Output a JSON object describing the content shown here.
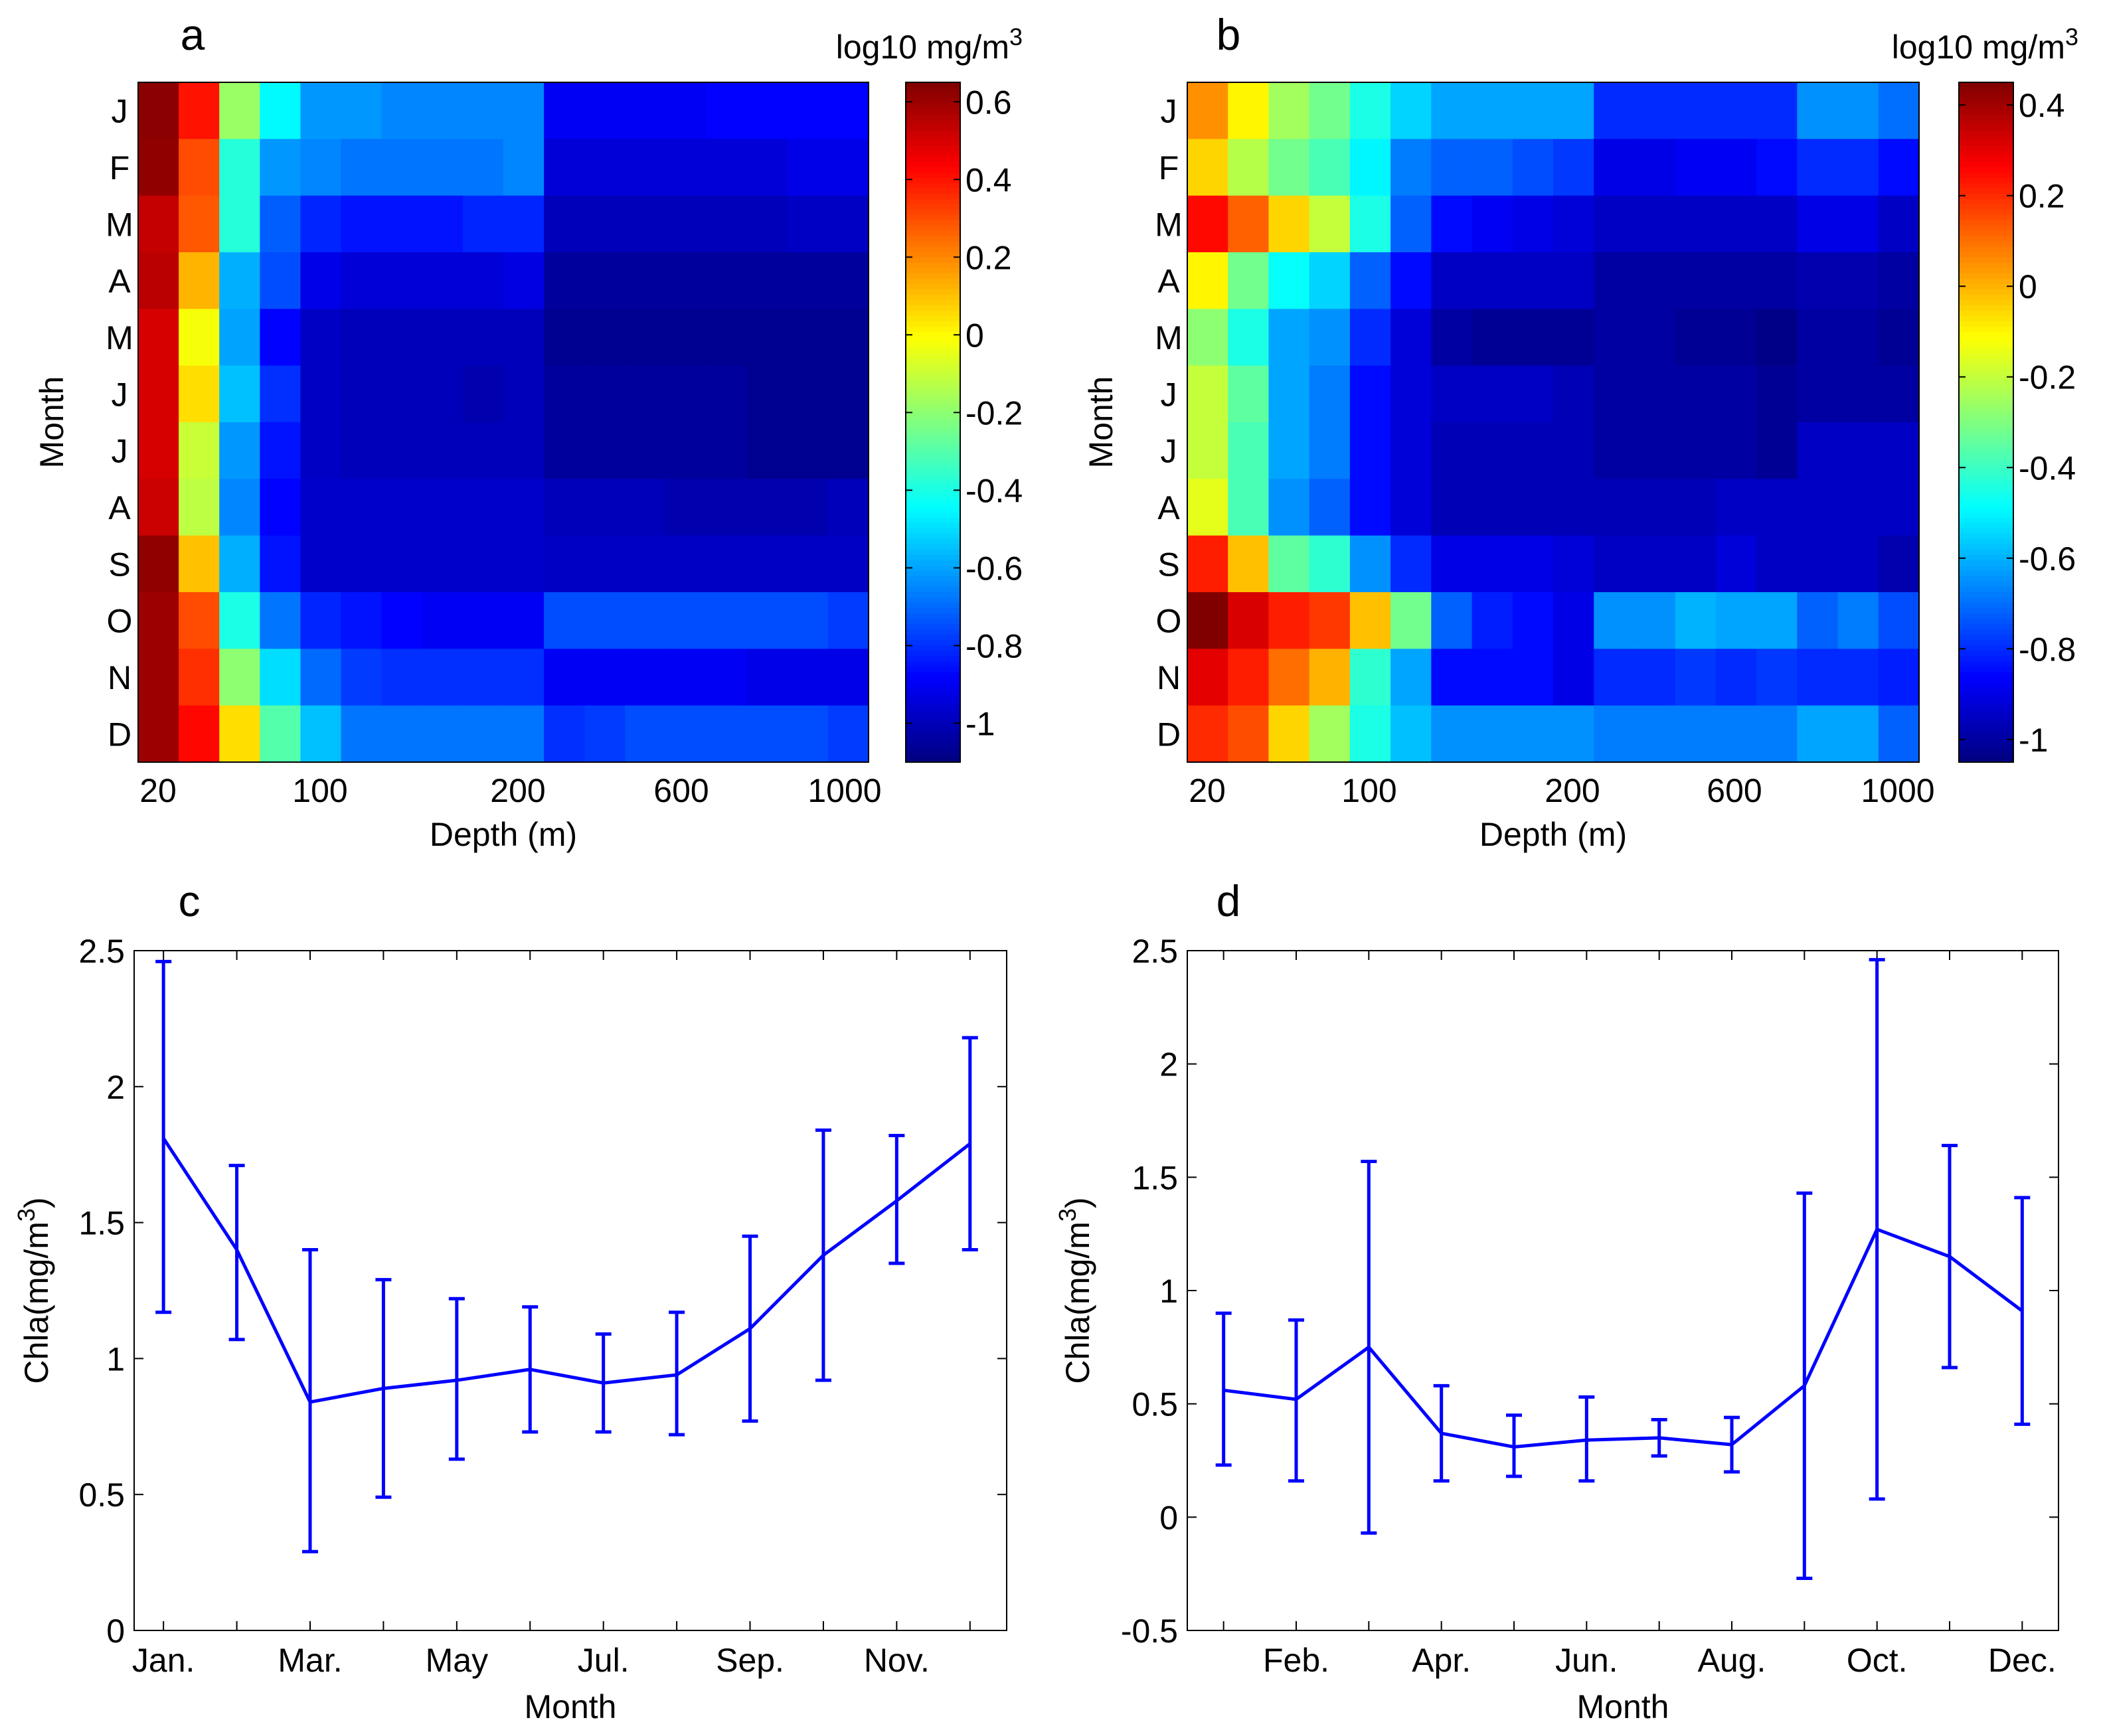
{
  "chart_data": [
    {
      "panel": "a",
      "type": "heatmap",
      "colorbar_label_prefix": "log10 mg/m",
      "colorbar_label_sup": "3",
      "xlabel": "Depth (m)",
      "ylabel": "Month",
      "y_categories": [
        "J",
        "F",
        "M",
        "A",
        "M",
        "J",
        "J",
        "A",
        "S",
        "O",
        "N",
        "D"
      ],
      "x_ticks": [
        "20",
        "100",
        "200",
        "600",
        "1000"
      ],
      "colorbar_range": [
        -1.1,
        0.65
      ],
      "colorbar_ticks": [
        "0.6",
        "0.4",
        "0.2",
        "0",
        "-0.2",
        "-0.4",
        "-0.6",
        "-0.8",
        "-1"
      ],
      "colorbar_tick_values": [
        0.6,
        0.4,
        0.2,
        0,
        -0.2,
        -0.4,
        -0.6,
        -0.8,
        -1
      ],
      "values": [
        [
          0.63,
          0.4,
          -0.18,
          -0.45,
          -0.62,
          -0.62,
          -0.65,
          -0.65,
          -0.65,
          -0.65,
          -0.9,
          -0.9,
          -0.9,
          -0.9,
          -0.88,
          -0.88,
          -0.88,
          -0.88
        ],
        [
          0.62,
          0.3,
          -0.38,
          -0.62,
          -0.65,
          -0.68,
          -0.68,
          -0.68,
          -0.68,
          -0.65,
          -0.95,
          -0.95,
          -0.95,
          -0.95,
          -0.95,
          -0.95,
          -0.92,
          -0.92
        ],
        [
          0.53,
          0.28,
          -0.38,
          -0.72,
          -0.82,
          -0.85,
          -0.85,
          -0.85,
          -0.82,
          -0.82,
          -1.0,
          -1.0,
          -1.0,
          -1.0,
          -1.0,
          -1.0,
          -0.98,
          -0.98
        ],
        [
          0.55,
          0.12,
          -0.58,
          -0.75,
          -0.92,
          -0.95,
          -0.95,
          -0.95,
          -0.95,
          -0.93,
          -1.05,
          -1.05,
          -1.05,
          -1.05,
          -1.05,
          -1.05,
          -1.05,
          -1.05
        ],
        [
          0.5,
          -0.02,
          -0.6,
          -0.88,
          -0.98,
          -1.0,
          -1.0,
          -1.0,
          -1.0,
          -1.0,
          -1.07,
          -1.07,
          -1.07,
          -1.07,
          -1.07,
          -1.07,
          -1.07,
          -1.07
        ],
        [
          0.5,
          0.05,
          -0.55,
          -0.8,
          -0.98,
          -1.0,
          -1.0,
          -1.0,
          -1.02,
          -1.0,
          -1.05,
          -1.05,
          -1.05,
          -1.05,
          -1.05,
          -1.07,
          -1.07,
          -1.07
        ],
        [
          0.5,
          -0.1,
          -0.62,
          -0.85,
          -0.98,
          -1.0,
          -1.0,
          -1.0,
          -1.0,
          -1.0,
          -1.05,
          -1.05,
          -1.05,
          -1.05,
          -1.05,
          -1.07,
          -1.07,
          -1.07
        ],
        [
          0.52,
          -0.12,
          -0.65,
          -0.88,
          -0.97,
          -0.97,
          -0.97,
          -0.97,
          -0.97,
          -0.97,
          -1.0,
          -1.0,
          -1.0,
          -1.02,
          -1.02,
          -1.02,
          -1.02,
          -1.0
        ],
        [
          0.62,
          0.1,
          -0.58,
          -0.85,
          -0.97,
          -0.97,
          -0.97,
          -0.97,
          -0.97,
          -0.97,
          -0.98,
          -0.98,
          -0.98,
          -0.98,
          -0.98,
          -0.98,
          -0.98,
          -0.98
        ],
        [
          0.6,
          0.3,
          -0.4,
          -0.68,
          -0.82,
          -0.85,
          -0.88,
          -0.9,
          -0.9,
          -0.9,
          -0.75,
          -0.75,
          -0.75,
          -0.75,
          -0.75,
          -0.75,
          -0.75,
          -0.78
        ],
        [
          0.6,
          0.35,
          -0.2,
          -0.5,
          -0.7,
          -0.78,
          -0.8,
          -0.8,
          -0.8,
          -0.8,
          -0.9,
          -0.9,
          -0.9,
          -0.9,
          -0.9,
          -0.92,
          -0.92,
          -0.92
        ],
        [
          0.6,
          0.42,
          0.05,
          -0.3,
          -0.55,
          -0.68,
          -0.68,
          -0.68,
          -0.68,
          -0.68,
          -0.8,
          -0.78,
          -0.75,
          -0.75,
          -0.75,
          -0.75,
          -0.75,
          -0.78
        ]
      ]
    },
    {
      "panel": "b",
      "type": "heatmap",
      "colorbar_label_prefix": "log10 mg/m",
      "colorbar_label_sup": "3",
      "xlabel": "Depth (m)",
      "ylabel": "Month",
      "y_categories": [
        "J",
        "F",
        "M",
        "A",
        "M",
        "J",
        "J",
        "A",
        "S",
        "O",
        "N",
        "D"
      ],
      "x_ticks": [
        "20",
        "100",
        "200",
        "600",
        "1000"
      ],
      "colorbar_range": [
        -1.05,
        0.45
      ],
      "colorbar_ticks": [
        "0.4",
        "0.2",
        "0",
        "-0.2",
        "-0.4",
        "-0.6",
        "-0.8",
        "-1"
      ],
      "colorbar_tick_values": [
        0.4,
        0.2,
        0,
        -0.2,
        -0.4,
        -0.6,
        -0.8,
        -1
      ],
      "values": [
        [
          0.05,
          -0.1,
          -0.25,
          -0.32,
          -0.45,
          -0.55,
          -0.62,
          -0.62,
          -0.62,
          -0.62,
          -0.8,
          -0.8,
          -0.8,
          -0.8,
          -0.8,
          -0.65,
          -0.65,
          -0.7
        ],
        [
          -0.05,
          -0.22,
          -0.32,
          -0.38,
          -0.5,
          -0.68,
          -0.72,
          -0.72,
          -0.75,
          -0.78,
          -0.9,
          -0.9,
          -0.88,
          -0.88,
          -0.85,
          -0.8,
          -0.8,
          -0.85
        ],
        [
          0.25,
          0.12,
          -0.05,
          -0.2,
          -0.45,
          -0.72,
          -0.85,
          -0.88,
          -0.9,
          -0.92,
          -0.95,
          -0.95,
          -0.95,
          -0.95,
          -0.95,
          -0.9,
          -0.9,
          -0.95
        ],
        [
          -0.1,
          -0.32,
          -0.48,
          -0.55,
          -0.72,
          -0.85,
          -0.95,
          -0.95,
          -0.95,
          -0.95,
          -1.0,
          -1.0,
          -1.0,
          -1.0,
          -1.0,
          -0.98,
          -0.98,
          -1.0
        ],
        [
          -0.28,
          -0.45,
          -0.62,
          -0.65,
          -0.8,
          -0.92,
          -1.0,
          -1.02,
          -1.02,
          -1.02,
          -1.0,
          -1.0,
          -1.02,
          -1.02,
          -1.04,
          -1.0,
          -1.0,
          -1.02
        ],
        [
          -0.2,
          -0.35,
          -0.62,
          -0.68,
          -0.85,
          -0.92,
          -0.95,
          -0.95,
          -0.95,
          -0.97,
          -1.0,
          -1.0,
          -1.0,
          -1.0,
          -1.02,
          -1.0,
          -1.0,
          -1.0
        ],
        [
          -0.2,
          -0.38,
          -0.62,
          -0.68,
          -0.85,
          -0.92,
          -0.97,
          -0.97,
          -0.97,
          -0.97,
          -1.0,
          -1.0,
          -1.0,
          -1.0,
          -1.02,
          -0.95,
          -0.95,
          -0.95
        ],
        [
          -0.15,
          -0.38,
          -0.65,
          -0.72,
          -0.85,
          -0.92,
          -0.97,
          -0.97,
          -0.97,
          -0.97,
          -0.97,
          -0.97,
          -0.97,
          -0.95,
          -0.95,
          -0.95,
          -0.95,
          -0.95
        ],
        [
          0.22,
          -0.02,
          -0.35,
          -0.42,
          -0.65,
          -0.8,
          -0.9,
          -0.9,
          -0.9,
          -0.92,
          -0.95,
          -0.95,
          -0.95,
          -0.92,
          -0.95,
          -0.95,
          -0.95,
          -0.98
        ],
        [
          0.45,
          0.32,
          0.22,
          0.18,
          -0.02,
          -0.32,
          -0.72,
          -0.82,
          -0.85,
          -0.9,
          -0.65,
          -0.65,
          -0.6,
          -0.62,
          -0.62,
          -0.72,
          -0.68,
          -0.75
        ],
        [
          0.3,
          0.22,
          0.1,
          0.0,
          -0.42,
          -0.62,
          -0.85,
          -0.85,
          -0.85,
          -0.9,
          -0.8,
          -0.8,
          -0.78,
          -0.8,
          -0.78,
          -0.8,
          -0.8,
          -0.82
        ],
        [
          0.2,
          0.15,
          -0.05,
          -0.25,
          -0.45,
          -0.58,
          -0.65,
          -0.65,
          -0.65,
          -0.65,
          -0.68,
          -0.68,
          -0.68,
          -0.68,
          -0.68,
          -0.62,
          -0.62,
          -0.72
        ]
      ]
    },
    {
      "panel": "c",
      "type": "line",
      "errorbars": true,
      "xlabel": "Month",
      "ylabel_prefix": "Chla(mg/m",
      "ylabel_sup": "3",
      "ylabel_suffix": ")",
      "ylim": [
        0,
        2.5
      ],
      "xlim": [
        0.6,
        12.5
      ],
      "y_ticks": [
        "0",
        "0.5",
        "1",
        "1.5",
        "2",
        "2.5"
      ],
      "y_tick_values": [
        0,
        0.5,
        1,
        1.5,
        2,
        2.5
      ],
      "x_ticks": [
        "Jan.",
        "Mar.",
        "May",
        "Jul.",
        "Sep.",
        "Nov."
      ],
      "x_tick_values": [
        1,
        3,
        5,
        7,
        9,
        11
      ],
      "line_color": "#0000ff",
      "x": [
        1,
        2,
        3,
        4,
        5,
        6,
        7,
        8,
        9,
        10,
        11,
        12
      ],
      "values": [
        1.81,
        1.4,
        0.84,
        0.89,
        0.92,
        0.96,
        0.91,
        0.94,
        1.11,
        1.38,
        1.58,
        1.79
      ],
      "lower": [
        1.17,
        1.07,
        0.29,
        0.49,
        0.63,
        0.73,
        0.73,
        0.72,
        0.77,
        0.92,
        1.35,
        1.4
      ],
      "upper": [
        2.46,
        1.71,
        1.4,
        1.29,
        1.22,
        1.19,
        1.09,
        1.17,
        1.45,
        1.84,
        1.82,
        2.18
      ]
    },
    {
      "panel": "d",
      "type": "line",
      "errorbars": true,
      "xlabel": "Month",
      "ylabel_prefix": "Chla(mg/m",
      "ylabel_sup": "3",
      "ylabel_suffix": ")",
      "ylim": [
        -0.5,
        2.5
      ],
      "xlim": [
        0.5,
        12.5
      ],
      "y_ticks": [
        "-0.5",
        "0",
        "0.5",
        "1",
        "1.5",
        "2",
        "2.5"
      ],
      "y_tick_values": [
        -0.5,
        0,
        0.5,
        1,
        1.5,
        2,
        2.5
      ],
      "x_ticks": [
        "Feb.",
        "Apr.",
        "Jun.",
        "Aug.",
        "Oct.",
        "Dec."
      ],
      "x_tick_values": [
        2,
        4,
        6,
        8,
        10,
        12
      ],
      "line_color": "#0000ff",
      "x": [
        1,
        2,
        3,
        4,
        5,
        6,
        7,
        8,
        9,
        10,
        11,
        12
      ],
      "values": [
        0.56,
        0.52,
        0.75,
        0.37,
        0.31,
        0.34,
        0.35,
        0.32,
        0.58,
        1.27,
        1.15,
        0.91
      ],
      "lower": [
        0.23,
        0.16,
        -0.07,
        0.16,
        0.18,
        0.16,
        0.27,
        0.2,
        -0.27,
        0.08,
        0.66,
        0.41
      ],
      "upper": [
        0.9,
        0.87,
        1.57,
        0.58,
        0.45,
        0.53,
        0.43,
        0.44,
        1.43,
        2.46,
        1.64,
        1.41
      ]
    }
  ],
  "panel_letters": [
    "a",
    "b",
    "c",
    "d"
  ]
}
